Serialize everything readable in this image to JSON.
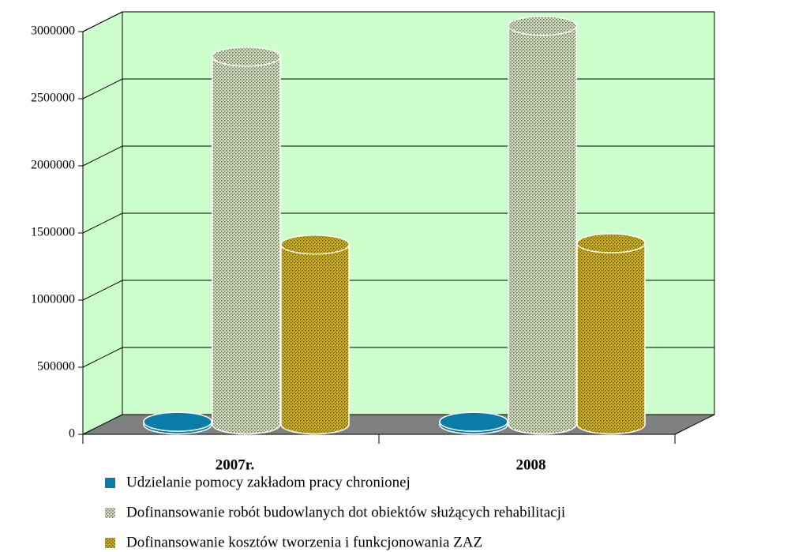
{
  "chart_data": {
    "type": "bar3d-cylinder",
    "categories": [
      "2007r.",
      "2008"
    ],
    "series": [
      {
        "name": "Udzielanie pomocy zakładom pracy chronionej",
        "color": "#0a7ca8",
        "values": [
          20000,
          20000
        ]
      },
      {
        "name": "Dofinansowanie robót budowlanych dot obiektów służących rehabilitacji",
        "color": "#d8dccc",
        "values": [
          2740000,
          2970000
        ]
      },
      {
        "name": "Dofinansowanie kosztów tworzenia i funkcjonowania ZAZ",
        "color": "#d4b000",
        "values": [
          1340000,
          1350000
        ]
      }
    ],
    "ylim": [
      0,
      3000000
    ],
    "yticks": [
      0,
      500000,
      1000000,
      1500000,
      2000000,
      2500000,
      3000000
    ],
    "grid": true,
    "wall_color": "#ccffcc",
    "floor_color": "#808080"
  }
}
